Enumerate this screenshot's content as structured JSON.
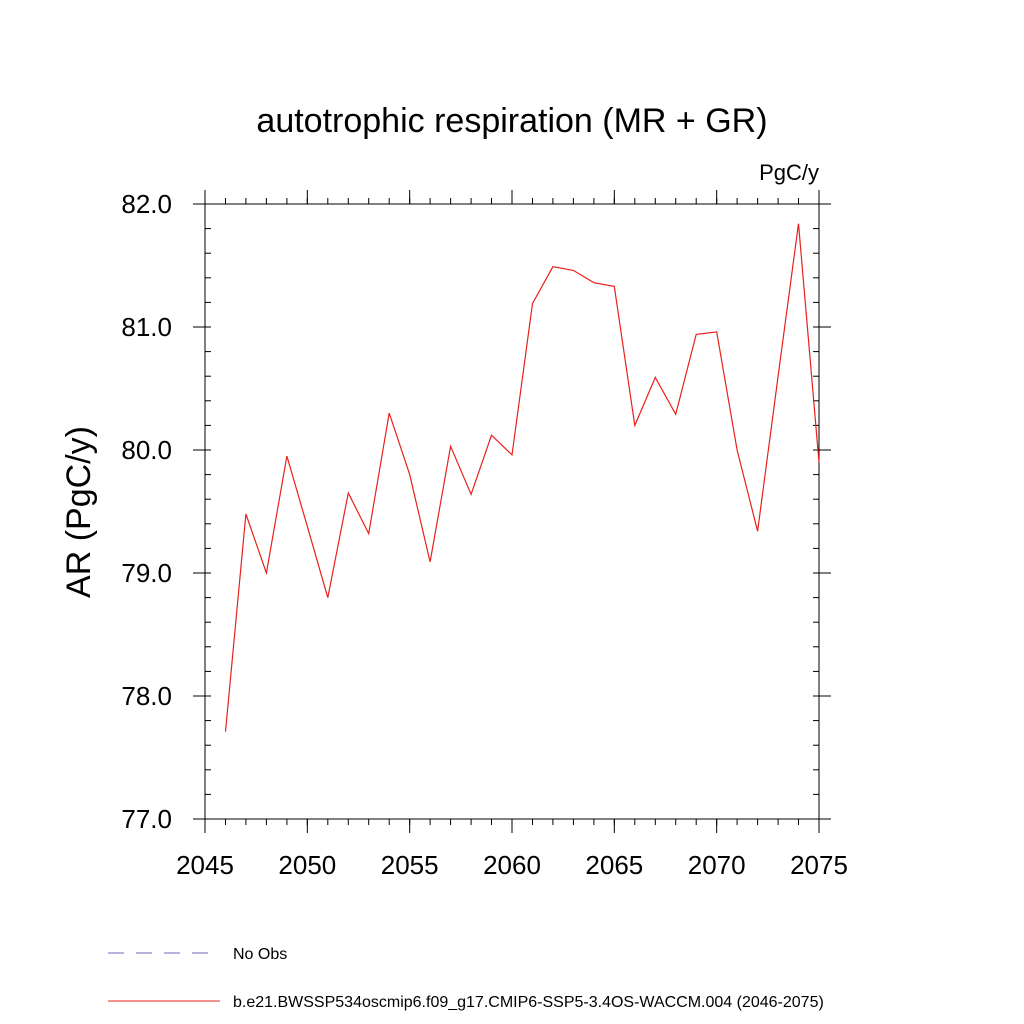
{
  "chart_data": {
    "type": "line",
    "title": "autotrophic respiration (MR + GR)",
    "units": "PgC/y",
    "xlabel": "",
    "ylabel": "AR  (PgC/y)",
    "xlim": [
      2045,
      2075
    ],
    "ylim": [
      77.0,
      82.0
    ],
    "x_ticks": [
      2045,
      2050,
      2055,
      2060,
      2065,
      2070,
      2075
    ],
    "x_tick_labels": [
      "2045",
      "2050",
      "2055",
      "2060",
      "2065",
      "2070",
      "2075"
    ],
    "y_ticks": [
      77.0,
      78.0,
      79.0,
      80.0,
      81.0,
      82.0
    ],
    "y_tick_labels": [
      "77.0",
      "78.0",
      "79.0",
      "80.0",
      "81.0",
      "82.0"
    ],
    "grid": false,
    "legend_position": "bottom",
    "series": [
      {
        "name": "b.e21.BWSSP534oscmip6.f09_g17.CMIP6-SSP5-3.4OS-WACCM.004 (2046-2075)",
        "color": "#e8201c",
        "style": "solid",
        "x": [
          2046,
          2047,
          2048,
          2049,
          2050,
          2051,
          2052,
          2053,
          2054,
          2055,
          2056,
          2057,
          2058,
          2059,
          2060,
          2061,
          2062,
          2063,
          2064,
          2065,
          2066,
          2067,
          2068,
          2069,
          2070,
          2071,
          2072,
          2073,
          2074,
          2075
        ],
        "y": [
          77.71,
          79.48,
          79.0,
          79.95,
          79.38,
          78.8,
          79.65,
          79.32,
          80.3,
          79.8,
          79.09,
          80.03,
          79.64,
          80.12,
          79.96,
          81.19,
          81.49,
          81.46,
          81.36,
          81.33,
          80.2,
          80.59,
          80.29,
          80.94,
          80.96,
          80.0,
          79.34,
          80.6,
          81.84,
          79.9
        ]
      }
    ],
    "legend": [
      {
        "label": "No Obs",
        "color": "#6f63b8",
        "style": "dashed"
      },
      {
        "label": "b.e21.BWSSP534oscmip6.f09_g17.CMIP6-SSP5-3.4OS-WACCM.004 (2046-2075)",
        "color": "#e8201c",
        "style": "solid"
      }
    ]
  }
}
